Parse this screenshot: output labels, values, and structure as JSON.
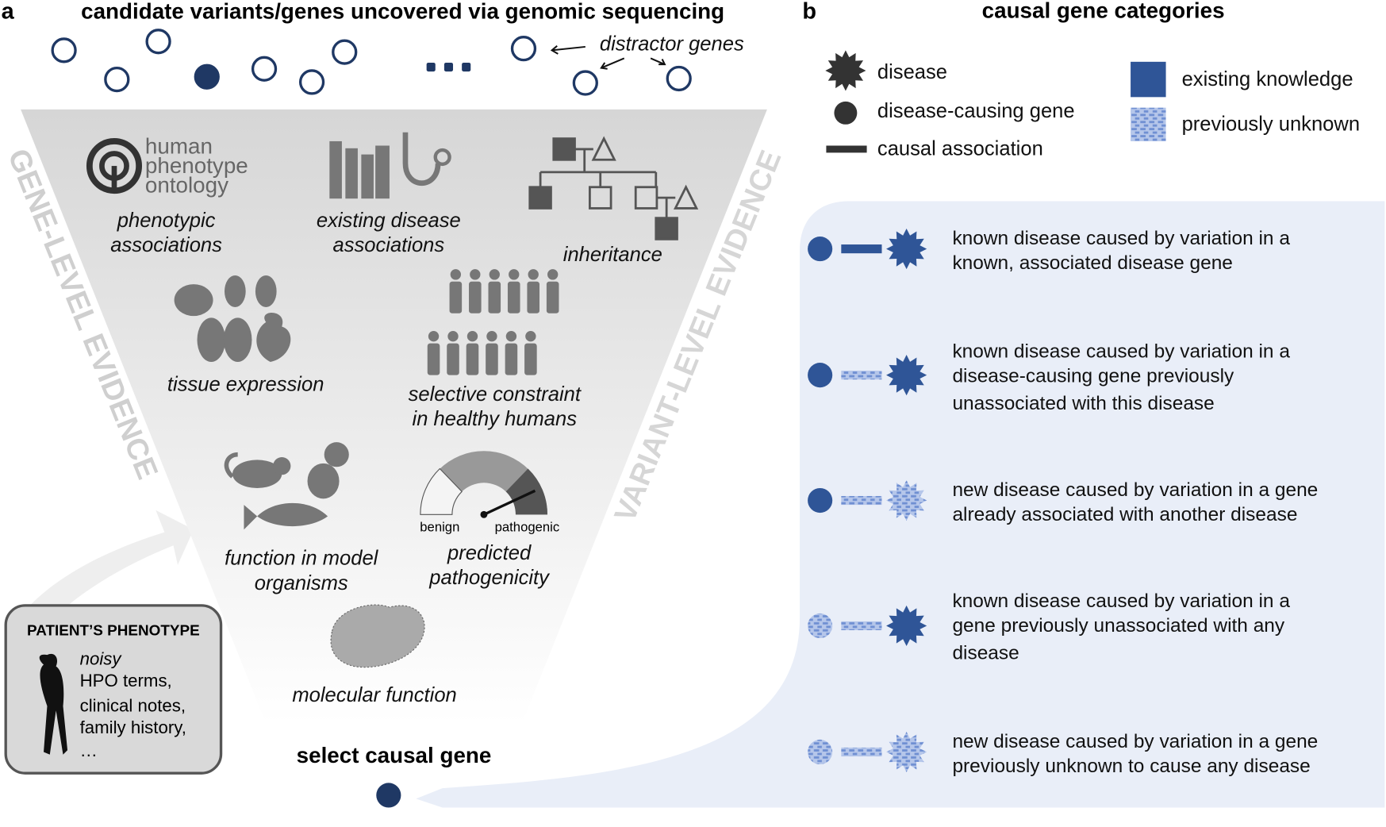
{
  "panel_a": {
    "label": "a",
    "title": "candidate variants/genes uncovered via genomic sequencing",
    "distractor_label": "distractor genes",
    "gene_level_label": "GENE-LEVEL EVIDENCE",
    "variant_level_label": "VARIANT-LEVEL EVIDENCE",
    "hpo_logo": [
      "human",
      "phenotype",
      "ontology"
    ],
    "evidence": [
      {
        "lines": [
          "phenotypic",
          "associations"
        ]
      },
      {
        "lines": [
          "existing disease",
          "associations"
        ]
      },
      {
        "lines": [
          "inheritance"
        ]
      },
      {
        "lines": [
          "tissue expression"
        ]
      },
      {
        "lines": [
          "selective constraint",
          "in healthy humans"
        ]
      },
      {
        "lines": [
          "function in model",
          "organisms"
        ]
      },
      {
        "lines": [
          "predicted",
          "pathogenicity"
        ]
      },
      {
        "lines": [
          "molecular function"
        ]
      }
    ],
    "gauge_labels": [
      "benign",
      "pathogenic"
    ],
    "patient": {
      "title": "PATIENT’S PHENOTYPE",
      "lines": [
        "noisy",
        "HPO terms,",
        "clinical notes,",
        "family history,",
        "…"
      ]
    },
    "select_label": "select causal gene"
  },
  "panel_b": {
    "label": "b",
    "title": "causal gene categories",
    "legend": [
      "disease",
      "disease-causing gene",
      "causal association",
      "existing knowledge",
      "previously unknown"
    ],
    "categories": [
      {
        "lines": [
          "known disease caused by variation in a",
          "known, associated disease gene"
        ]
      },
      {
        "lines": [
          "known disease caused by variation in a",
          "disease-causing gene previously",
          "unassociated with this disease"
        ]
      },
      {
        "lines": [
          "new disease caused by variation in a gene",
          "already associated with another disease"
        ]
      },
      {
        "lines": [
          "known disease caused by variation in a",
          "gene previously unassociated with any",
          "disease"
        ]
      },
      {
        "lines": [
          "new disease caused by variation in a gene",
          "previously unknown to cause any disease"
        ]
      }
    ]
  }
}
